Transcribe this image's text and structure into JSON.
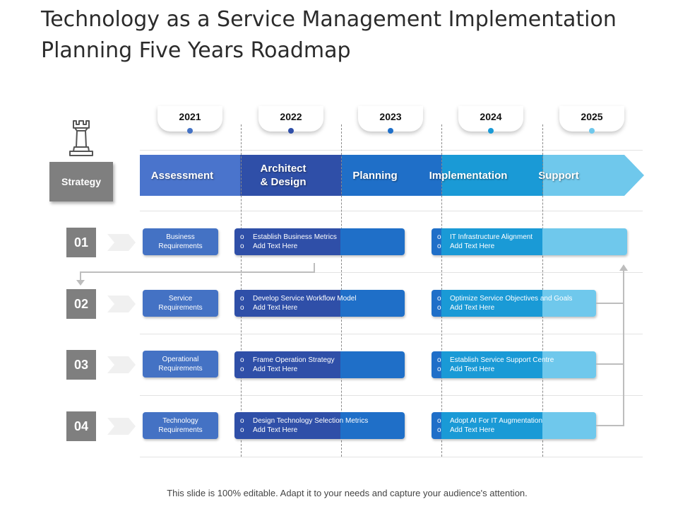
{
  "title": {
    "line1": "Technology as a Service Management Implementation",
    "line2": "Planning Five Years Roadmap"
  },
  "years": [
    {
      "label": "2021",
      "dot_color": "#4472c4"
    },
    {
      "label": "2022",
      "dot_color": "#2f4fa8"
    },
    {
      "label": "2023",
      "dot_color": "#1f6fc8"
    },
    {
      "label": "2024",
      "dot_color": "#1a9ad6"
    },
    {
      "label": "2025",
      "dot_color": "#6fc8ec"
    }
  ],
  "strategy_label": "Strategy",
  "strategy_icon": "chess-rook-icon",
  "phases": [
    {
      "label": "Assessment",
      "color": "#4a74cc"
    },
    {
      "label": "Architect\n& Design",
      "color": "#2f4fa8"
    },
    {
      "label": "Planning",
      "color": "#1f6fc8"
    },
    {
      "label": "Implementation",
      "color": "#1a9ad6"
    },
    {
      "label": "Support",
      "color": "#6fc8ec"
    }
  ],
  "rows": [
    {
      "number": "01",
      "requirement": "Business\nRequirements",
      "mid_items": [
        "Establish Business Metrics",
        "Add Text Here"
      ],
      "right_items": [
        "IT Infrastructure Alignment",
        "Add Text Here"
      ]
    },
    {
      "number": "02",
      "requirement": "Service\nRequirements",
      "mid_items": [
        "Develop Service Workflow Model",
        "Add Text Here"
      ],
      "right_items": [
        "Optimize Service Objectives and Goals",
        "Add Text Here"
      ]
    },
    {
      "number": "03",
      "requirement": "Operational\nRequirements",
      "mid_items": [
        "Frame Operation Strategy",
        "Add Text Here"
      ],
      "right_items": [
        "Establish Service Support Centre",
        "Add Text Here"
      ]
    },
    {
      "number": "04",
      "requirement": "Technology\nRequirements",
      "mid_items": [
        "Design Technology Selection Metrics",
        "Add Text Here"
      ],
      "right_items": [
        "Adopt AI For IT  Augmentation",
        "Add Text Here"
      ]
    }
  ],
  "bullet_marker": "o",
  "footer": "This slide is 100% editable. Adapt it to your needs and capture your audience's attention."
}
